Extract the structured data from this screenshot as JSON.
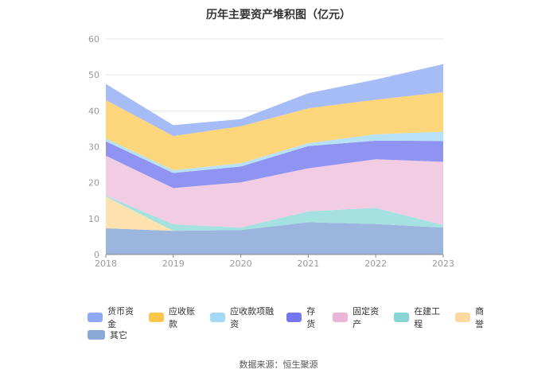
{
  "title": "历年主要资产堆积图（亿元）",
  "source": "数据来源：恒生聚源",
  "chart_data": {
    "type": "area",
    "stacked": true,
    "title": "历年主要资产堆积图（亿元）",
    "categories": [
      "2018",
      "2019",
      "2020",
      "2021",
      "2022",
      "2023"
    ],
    "ylim": [
      0,
      60
    ],
    "yticks": [
      "0",
      "10",
      "20",
      "30",
      "40",
      "50",
      "60"
    ],
    "grid": true,
    "legend_position": "bottom",
    "series": [
      {
        "name": "其它",
        "color": "#9bb5de",
        "values": [
          7.3,
          6.6,
          6.8,
          9.0,
          8.5,
          7.5
        ]
      },
      {
        "name": "商誉",
        "color": "#fde2b0",
        "values": [
          8.8,
          0.0,
          0.0,
          0.0,
          0.0,
          0.0
        ]
      },
      {
        "name": "在建工程",
        "color": "#a5e1e0",
        "values": [
          0.3,
          1.8,
          0.7,
          3.0,
          4.5,
          0.7
        ]
      },
      {
        "name": "固定资产",
        "color": "#f1cce2",
        "values": [
          11.1,
          10.1,
          12.6,
          12.0,
          13.5,
          17.6
        ]
      },
      {
        "name": "存货",
        "color": "#8f93f2",
        "values": [
          4.0,
          4.2,
          4.4,
          6.2,
          5.2,
          5.8
        ]
      },
      {
        "name": "应收款项融资",
        "color": "#b7e1f6",
        "values": [
          0.8,
          0.8,
          0.9,
          0.8,
          1.8,
          2.6
        ]
      },
      {
        "name": "应收账款",
        "color": "#fdd57a",
        "values": [
          10.7,
          9.5,
          10.3,
          9.7,
          9.6,
          11.0
        ]
      },
      {
        "name": "货币资金",
        "color": "#a6bcf7",
        "values": [
          4.5,
          3.0,
          2.0,
          4.2,
          5.6,
          7.8
        ]
      }
    ]
  },
  "legend": [
    {
      "name": "货币资金",
      "color": "#8fa9f4"
    },
    {
      "name": "应收账款",
      "color": "#fcc64a"
    },
    {
      "name": "应收款项融资",
      "color": "#a3d9f4"
    },
    {
      "name": "存货",
      "color": "#7577ef"
    },
    {
      "name": "固定资产",
      "color": "#eab5d6"
    },
    {
      "name": "在建工程",
      "color": "#86d6d6"
    },
    {
      "name": "商誉",
      "color": "#fdd9a0"
    },
    {
      "name": "其它",
      "color": "#8ca8d8"
    }
  ]
}
